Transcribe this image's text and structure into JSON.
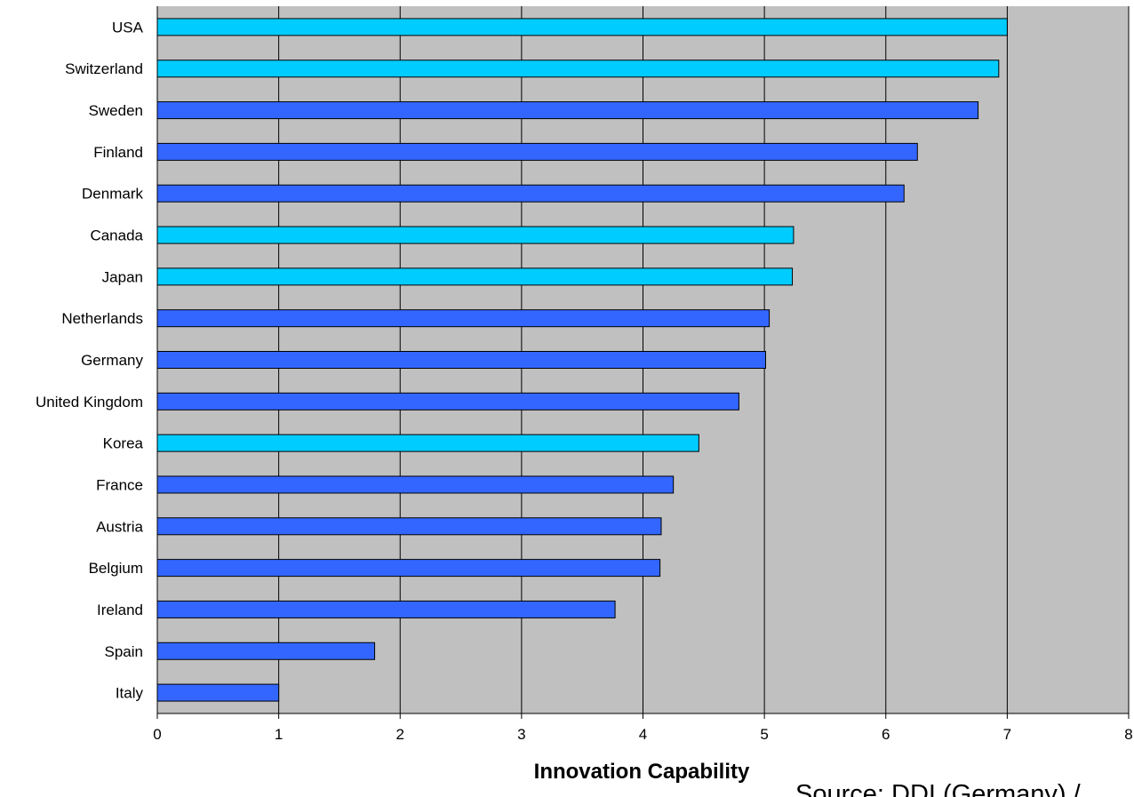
{
  "chart_data": {
    "type": "bar",
    "orientation": "horizontal",
    "categories": [
      "USA",
      "Switzerland",
      "Sweden",
      "Finland",
      "Denmark",
      "Canada",
      "Japan",
      "Netherlands",
      "Germany",
      "United Kingdom",
      "Korea",
      "France",
      "Austria",
      "Belgium",
      "Ireland",
      "Spain",
      "Italy"
    ],
    "values": [
      7.0,
      6.93,
      6.76,
      6.26,
      6.15,
      5.24,
      5.23,
      5.04,
      5.01,
      4.79,
      4.46,
      4.25,
      4.15,
      4.14,
      3.77,
      1.79,
      1.0
    ],
    "highlighted": [
      "USA",
      "Switzerland",
      "Canada",
      "Japan",
      "Korea"
    ],
    "xlabel": "Innovation Capability",
    "ylabel": "",
    "xlim": [
      0,
      8
    ],
    "xticks": [
      0,
      1,
      2,
      3,
      4,
      5,
      6,
      7,
      8
    ],
    "grid": "vertical",
    "source_note": "Source: DDI (Germany) / ..."
  },
  "colors": {
    "plot_background": "#c0c0c0",
    "bar_default": "#3366ff",
    "bar_highlight": "#00ccff",
    "bar_outline": "#000000",
    "gridline": "#000000"
  }
}
